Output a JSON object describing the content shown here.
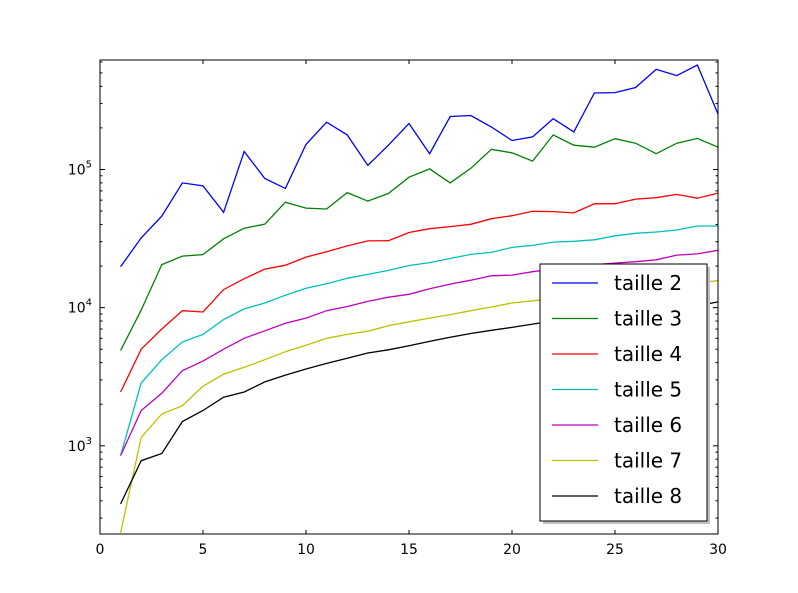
{
  "chart_data": {
    "type": "line",
    "title": "",
    "xlabel": "",
    "ylabel": "",
    "xlim": [
      0,
      30
    ],
    "ylim": [
      230,
      620000
    ],
    "yscale": "log",
    "grid": false,
    "legend_position": "lower-right",
    "xticks": [
      0,
      5,
      10,
      15,
      20,
      25,
      30
    ],
    "xtick_labels": [
      "0",
      "5",
      "10",
      "15",
      "20",
      "25",
      "30"
    ],
    "yticks": [
      {
        "value": 1000,
        "base": "10",
        "exp": "3"
      },
      {
        "value": 10000,
        "base": "10",
        "exp": "4"
      },
      {
        "value": 100000,
        "base": "10",
        "exp": "5"
      }
    ],
    "x": [
      1,
      2,
      3,
      4,
      5,
      6,
      7,
      8,
      9,
      10,
      11,
      12,
      13,
      14,
      15,
      16,
      17,
      18,
      19,
      20,
      21,
      22,
      23,
      24,
      25,
      26,
      27,
      28,
      29,
      30
    ],
    "series": [
      {
        "name": "taille 2",
        "color": "#0000ff",
        "values": [
          19800,
          32000,
          46000,
          80000,
          76000,
          49000,
          135000,
          86000,
          73000,
          152000,
          220000,
          178000,
          107000,
          150000,
          215000,
          130000,
          242000,
          246000,
          203000,
          162000,
          172000,
          233000,
          187000,
          358000,
          360000,
          392000,
          530000,
          478000,
          570000,
          252000
        ]
      },
      {
        "name": "taille 3",
        "color": "#008000",
        "values": [
          4900,
          9600,
          20500,
          23600,
          24200,
          31500,
          37600,
          40200,
          58000,
          52500,
          51800,
          68000,
          59000,
          67000,
          88000,
          101000,
          80000,
          102000,
          140000,
          132000,
          115000,
          178000,
          150000,
          145000,
          167000,
          155000,
          130000,
          155000,
          168000,
          145000
        ]
      },
      {
        "name": "taille 4",
        "color": "#ff0000",
        "values": [
          2450,
          5000,
          7000,
          9500,
          9300,
          13500,
          16200,
          19000,
          20300,
          23200,
          25400,
          28000,
          30400,
          30500,
          35000,
          37300,
          38600,
          40100,
          44000,
          46300,
          49800,
          49600,
          48500,
          56400,
          56500,
          61000,
          62500,
          66000,
          62000,
          67500
        ]
      },
      {
        "name": "taille 5",
        "color": "#00bfbf",
        "values": [
          850,
          2850,
          4200,
          5650,
          6400,
          8200,
          9800,
          10800,
          12300,
          13800,
          14900,
          16300,
          17400,
          18600,
          20200,
          21200,
          22700,
          24300,
          25100,
          27300,
          28200,
          29800,
          30200,
          31000,
          33100,
          34500,
          35300,
          36500,
          39000,
          39000
        ]
      },
      {
        "name": "taille 6",
        "color": "#bf00bf",
        "values": [
          850,
          1800,
          2400,
          3500,
          4100,
          5000,
          6000,
          6800,
          7700,
          8400,
          9500,
          10200,
          11100,
          11900,
          12500,
          13700,
          14800,
          15800,
          17000,
          17200,
          18200,
          19000,
          20000,
          20500,
          21000,
          21500,
          22200,
          24000,
          24500,
          26000
        ]
      },
      {
        "name": "taille 7",
        "color": "#bfbf00",
        "values": [
          235,
          1150,
          1700,
          1950,
          2700,
          3300,
          3700,
          4200,
          4800,
          5350,
          6000,
          6400,
          6750,
          7400,
          7900,
          8400,
          8900,
          9500,
          10100,
          10800,
          11200,
          11600,
          12000,
          12500,
          13000,
          13500,
          14000,
          14500,
          15100,
          15700
        ]
      },
      {
        "name": "taille 8",
        "color": "#000000",
        "values": [
          380,
          780,
          880,
          1500,
          1800,
          2250,
          2450,
          2900,
          3250,
          3600,
          3950,
          4300,
          4700,
          4950,
          5300,
          5700,
          6100,
          6500,
          6850,
          7200,
          7600,
          8000,
          8400,
          8800,
          9100,
          9400,
          9700,
          10000,
          10300,
          11000
        ]
      }
    ]
  }
}
